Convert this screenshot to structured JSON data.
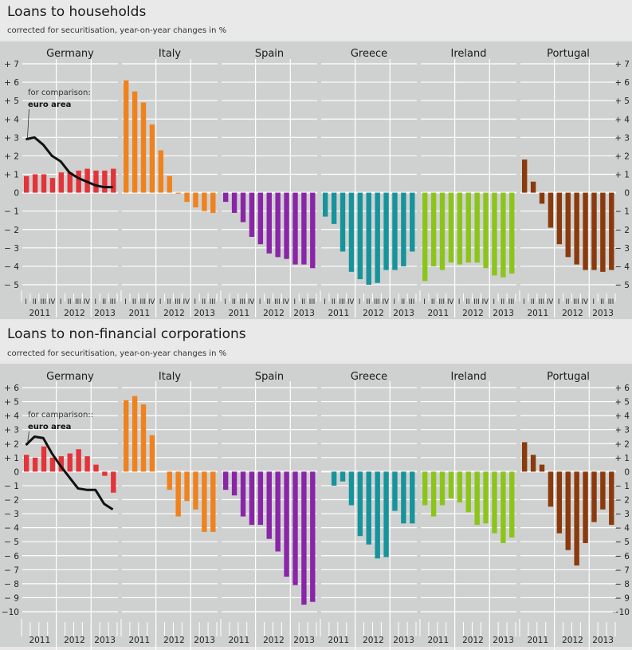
{
  "quarter_labels": [
    "I",
    "II",
    "III",
    "IV",
    "I",
    "II",
    "III",
    "IV",
    "I",
    "II",
    "III"
  ],
  "years": [
    "2011",
    "2012",
    "2013"
  ],
  "colors": {
    "Germany": "#e3343a",
    "Italy": "#f0821e",
    "Spain": "#8a25a8",
    "Greece": "#16949c",
    "Ireland": "#8cc51a",
    "Portugal": "#8a3a0c",
    "euro_area": "#111111",
    "grid": "#ffffff"
  },
  "chart_data": [
    {
      "type": "bar",
      "title": "Loans to households",
      "subtitle": "corrected for securitisation, year-on-year changes in %",
      "xlabel": "",
      "ylabel": "",
      "ylim": [
        -5,
        7
      ],
      "yticks": [
        7,
        6,
        5,
        4,
        3,
        2,
        1,
        0,
        -1,
        -2,
        -3,
        -4,
        -5
      ],
      "ytick_labels": [
        "+ 7",
        "+ 6",
        "+ 5",
        "+ 4",
        "+ 3",
        "+ 2",
        "+ 1",
        "0",
        "− 1",
        "− 2",
        "− 3",
        "− 4",
        "− 5"
      ],
      "show_quarter_labels": true,
      "grid": true,
      "categories": [
        "2011 Q1",
        "2011 Q2",
        "2011 Q3",
        "2011 Q4",
        "2012 Q1",
        "2012 Q2",
        "2012 Q3",
        "2012 Q4",
        "2013 Q1",
        "2013 Q2",
        "2013 Q3"
      ],
      "series": [
        {
          "name": "Germany",
          "values": [
            0.9,
            1.0,
            1.0,
            0.8,
            1.1,
            1.1,
            1.2,
            1.3,
            1.2,
            1.2,
            1.3
          ]
        },
        {
          "name": "Italy",
          "values": [
            6.1,
            5.5,
            4.9,
            3.7,
            2.3,
            0.9,
            -0.05,
            -0.5,
            -0.8,
            -1.0,
            -1.1
          ]
        },
        {
          "name": "Spain",
          "values": [
            -0.5,
            -1.1,
            -1.6,
            -2.4,
            -2.8,
            -3.3,
            -3.5,
            -3.6,
            -3.9,
            -3.9,
            -4.1
          ]
        },
        {
          "name": "Greece",
          "values": [
            -1.3,
            -1.7,
            -3.2,
            -4.3,
            -4.7,
            -5.0,
            -4.9,
            -4.2,
            -4.2,
            -4.0,
            -3.2
          ]
        },
        {
          "name": "Ireland",
          "values": [
            -4.8,
            -4.0,
            -4.2,
            -3.8,
            -3.9,
            -3.8,
            -3.8,
            -4.1,
            -4.5,
            -4.6,
            -4.4
          ]
        },
        {
          "name": "Portugal",
          "values": [
            1.8,
            0.6,
            -0.6,
            -1.9,
            -2.8,
            -3.5,
            -3.9,
            -4.2,
            -4.2,
            -4.3,
            -4.2
          ]
        }
      ],
      "comparison_line": {
        "panel": "Germany",
        "name": "euro area",
        "annotation": "for comparison:",
        "label": "euro area",
        "values": [
          2.9,
          3.0,
          2.6,
          2.0,
          1.7,
          1.1,
          0.8,
          0.6,
          0.4,
          0.3,
          0.3
        ]
      }
    },
    {
      "type": "bar",
      "title": "Loans to non-financial corporations",
      "subtitle": "corrected for securitisation, year-on-year changes in %",
      "xlabel": "",
      "ylabel": "",
      "ylim": [
        -10,
        6
      ],
      "yticks": [
        6,
        5,
        4,
        3,
        2,
        1,
        0,
        -1,
        -2,
        -3,
        -4,
        -5,
        -6,
        -7,
        -8,
        -9,
        -10
      ],
      "ytick_labels": [
        "+  6",
        "+  5",
        "+  4",
        "+  3",
        "+  2",
        "+  1",
        "0",
        "−  1",
        "−  2",
        "−  3",
        "−  4",
        "−  5",
        "−  6",
        "−  7",
        "−  8",
        "−  9",
        "−10"
      ],
      "show_quarter_labels": false,
      "grid": true,
      "categories": [
        "2011 Q1",
        "2011 Q2",
        "2011 Q3",
        "2011 Q4",
        "2012 Q1",
        "2012 Q2",
        "2012 Q3",
        "2012 Q4",
        "2013 Q1",
        "2013 Q2",
        "2013 Q3"
      ],
      "series": [
        {
          "name": "Germany",
          "values": [
            1.2,
            1.0,
            1.8,
            1.0,
            1.1,
            1.3,
            1.6,
            1.1,
            0.5,
            -0.3,
            -1.5
          ]
        },
        {
          "name": "Italy",
          "values": [
            5.1,
            5.4,
            4.8,
            2.6,
            0,
            -1.3,
            -3.2,
            -2.1,
            -2.7,
            -4.3,
            -4.3
          ]
        },
        {
          "name": "Spain",
          "values": [
            -1.3,
            -1.7,
            -3.2,
            -3.8,
            -3.8,
            -4.8,
            -5.7,
            -7.5,
            -8.1,
            -9.5,
            -9.3
          ]
        },
        {
          "name": "Greece",
          "values": [
            null,
            -1.0,
            -0.7,
            -2.4,
            -4.6,
            -5.2,
            -6.2,
            -6.1,
            -2.8,
            -3.7,
            -3.7
          ]
        },
        {
          "name": "Ireland",
          "values": [
            -2.4,
            -3.2,
            -2.4,
            -1.9,
            -2.2,
            -2.9,
            -3.8,
            -3.7,
            -4.4,
            -5.1,
            -4.7
          ]
        },
        {
          "name": "Portugal",
          "values": [
            2.1,
            1.2,
            0.5,
            -2.5,
            -4.4,
            -5.6,
            -6.7,
            -5.1,
            -3.6,
            -2.7,
            -3.8
          ]
        }
      ],
      "comparison_line": {
        "panel": "Germany",
        "name": "euro area",
        "annotation": "for camparison::",
        "label": "euro area",
        "values": [
          1.9,
          2.5,
          2.4,
          1.3,
          0.4,
          -0.4,
          -1.2,
          -1.3,
          -1.3,
          -2.3,
          -2.7
        ]
      }
    }
  ]
}
